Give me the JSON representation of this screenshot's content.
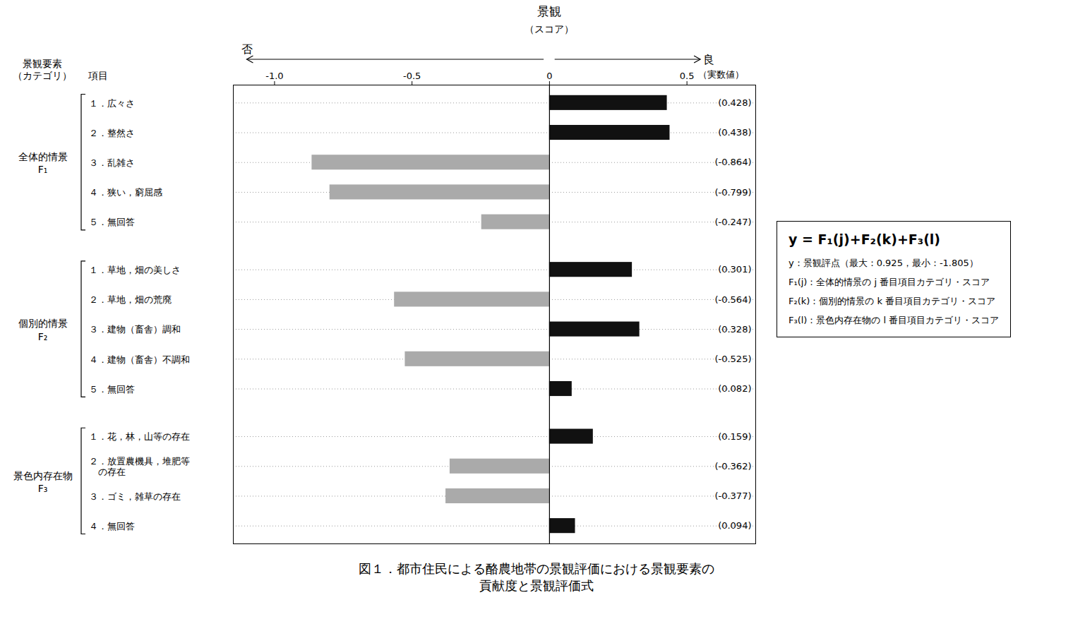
{
  "chart_data": {
    "type": "bar",
    "orientation": "horizontal",
    "title": "図１．都市住民による酪農地帯の景観評価における景観要素の\n貢献度と景観評価式",
    "xlim": [
      -1.15,
      0.75
    ],
    "xticks": [
      {
        "value": -1.0,
        "label": "-1.0"
      },
      -0.5,
      0,
      0.5
    ],
    "grid": true,
    "data_labels": true,
    "groups": [
      {
        "name": "全体的情景\nF₁",
        "categories": [
          "１．広々さ",
          "２．整然さ",
          "３．乱雑さ",
          "４．狭い，窮屈感",
          "５．無回答"
        ],
        "values": [
          0.428,
          0.438,
          -0.864,
          -0.799,
          -0.247
        ],
        "value_labels": [
          "(0.428)",
          "(0.438)",
          "(-0.864)",
          "(-0.799)",
          "(-0.247)"
        ],
        "colors": [
          "#111111",
          "#111111",
          "#aaaaaa",
          "#aaaaaa",
          "#aaaaaa"
        ]
      },
      {
        "name": "個別的情景\nF₂",
        "categories": [
          "１．草地，畑の美しさ",
          "２．草地，畑の荒廃",
          "３．建物（畜舎）調和",
          "４．建物（畜舎）不調和",
          "５．無回答"
        ],
        "values": [
          0.301,
          -0.564,
          0.328,
          -0.525,
          0.082
        ],
        "value_labels": [
          "(0.301)",
          "(-0.564)",
          "(0.328)",
          "(-0.525)",
          "(0.082)"
        ],
        "colors": [
          "#111111",
          "#aaaaaa",
          "#111111",
          "#aaaaaa",
          "#111111"
        ]
      },
      {
        "name": "景色内存在物\nF₃",
        "categories": [
          "１．花，林，山等の存在",
          "２．放置農機具，堆肥等\n　の存在",
          "３．ゴミ，雑草の存在",
          "４．無回答"
        ],
        "values": [
          0.159,
          -0.362,
          -0.377,
          0.094
        ],
        "value_labels": [
          "(0.159)",
          "(-0.362)",
          "(-0.377)",
          "(0.094)"
        ],
        "colors": [
          "#111111",
          "#aaaaaa",
          "#aaaaaa",
          "#111111"
        ]
      }
    ],
    "annotations": {
      "group_header": "景観要素\n（カテゴリ）",
      "item_header": "項目",
      "axis_title": "景観",
      "axis_subtitle": "（スコア）",
      "left_arrow": "否",
      "right_arrow": "良",
      "tick_note": "（実数値）",
      "formula": "y = F₁(j)+F₂(k)+F₃(l)",
      "formula_lines": [
        "y：景観評点（最大：0.925，最小：-1.805）",
        "F₁(j)：全体的情景の j 番目項目カテゴリ・スコア",
        "F₂(k)：個別的情景の k 番目項目カテゴリ・スコア",
        "F₃(l)：景色内存在物の l 番目項目カテゴリ・スコア"
      ]
    }
  }
}
